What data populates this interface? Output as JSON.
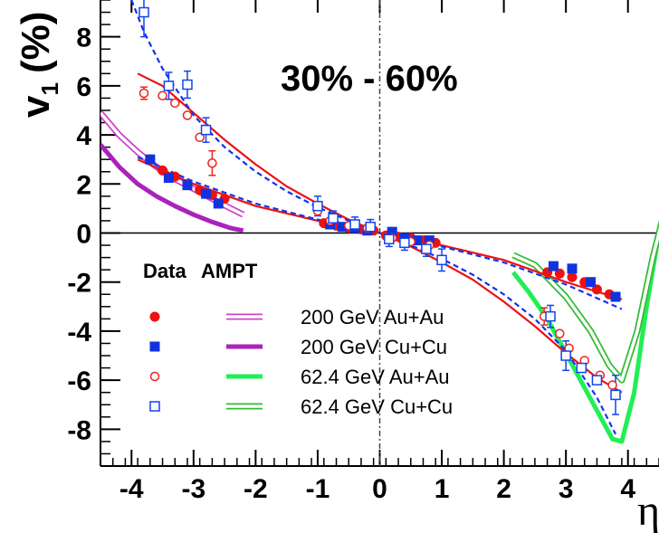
{
  "chart_data": {
    "type": "scatter",
    "annotation": "30% - 60%",
    "xlabel": "η",
    "ylabel": "v₁ (%)",
    "ylabel_main": "v",
    "ylabel_sub": "1",
    "ylabel_unit": "(%)",
    "xlim": [
      -4.5,
      4.5
    ],
    "ylim": [
      -9.5,
      9.5
    ],
    "xticks": [
      -4,
      -3,
      -2,
      -1,
      0,
      1,
      2,
      3,
      4
    ],
    "yticks": [
      -8,
      -6,
      -4,
      -2,
      0,
      2,
      4,
      6,
      8
    ],
    "grid": false,
    "legend": {
      "placement": "lower-left",
      "header_data": "Data",
      "header_model": "AMPT",
      "entries": [
        {
          "label": "200 GeV Au+Au",
          "marker": "filled-circle",
          "line": "double-thin",
          "color": "#cc44cc"
        },
        {
          "label": "200 GeV Cu+Cu",
          "marker": "filled-square",
          "line": "thick",
          "color": "#aa22bb"
        },
        {
          "label": "62.4 GeV Au+Au",
          "marker": "open-circle",
          "line": "thick",
          "color": "#22ee55"
        },
        {
          "label": "62.4 GeV Cu+Cu",
          "marker": "open-square",
          "line": "double-thin",
          "color": "#33bb33"
        }
      ]
    },
    "series": [
      {
        "name": "200 GeV Au+Au",
        "kind": "data",
        "marker": "filled-circle",
        "color": "#ee1111",
        "points": [
          [
            -3.7,
            3.0
          ],
          [
            -3.5,
            2.55
          ],
          [
            -3.3,
            2.3
          ],
          [
            -3.1,
            2.0
          ],
          [
            -2.9,
            1.75
          ],
          [
            -2.7,
            1.55
          ],
          [
            -2.5,
            1.4
          ],
          [
            -0.9,
            0.4
          ],
          [
            -0.7,
            0.3
          ],
          [
            -0.5,
            0.2
          ],
          [
            -0.3,
            0.15
          ],
          [
            -0.1,
            0.1
          ],
          [
            0.1,
            -0.1
          ],
          [
            0.3,
            -0.15
          ],
          [
            0.5,
            -0.2
          ],
          [
            0.7,
            -0.3
          ],
          [
            0.9,
            -0.4
          ],
          [
            2.7,
            -1.6
          ],
          [
            2.9,
            -1.65
          ],
          [
            3.1,
            -1.8
          ],
          [
            3.3,
            -2.0
          ],
          [
            3.5,
            -2.3
          ],
          [
            3.7,
            -2.5
          ]
        ]
      },
      {
        "name": "200 GeV Cu+Cu",
        "kind": "data",
        "marker": "filled-square",
        "color": "#1133dd",
        "points": [
          [
            -3.7,
            3.0
          ],
          [
            -3.4,
            2.25
          ],
          [
            -3.1,
            1.95
          ],
          [
            -2.8,
            1.6
          ],
          [
            -2.6,
            1.2
          ],
          [
            -0.8,
            0.35
          ],
          [
            -0.6,
            0.25
          ],
          [
            -0.4,
            0.2
          ],
          [
            -0.2,
            0.1
          ],
          [
            0.2,
            0.05
          ],
          [
            0.4,
            -0.2
          ],
          [
            0.6,
            -0.3
          ],
          [
            0.8,
            -0.3
          ],
          [
            2.8,
            -1.35
          ],
          [
            3.1,
            -1.45
          ],
          [
            3.4,
            -2.0
          ],
          [
            3.8,
            -2.6
          ]
        ]
      },
      {
        "name": "62.4 GeV Au+Au",
        "kind": "data",
        "marker": "open-circle",
        "color": "#ee2222",
        "points": [
          [
            -3.8,
            5.7
          ],
          [
            -3.5,
            5.6
          ],
          [
            -3.3,
            5.3
          ],
          [
            -3.1,
            4.8
          ],
          [
            -2.9,
            3.9
          ],
          [
            -2.7,
            2.85
          ],
          [
            -1.0,
            0.9
          ],
          [
            -0.8,
            0.5
          ],
          [
            -0.5,
            0.3
          ],
          [
            -0.2,
            0.2
          ],
          [
            0.2,
            -0.2
          ],
          [
            0.5,
            -0.35
          ],
          [
            0.8,
            -0.5
          ],
          [
            2.65,
            -3.4
          ],
          [
            2.9,
            -4.1
          ],
          [
            3.05,
            -4.7
          ],
          [
            3.3,
            -5.2
          ],
          [
            3.55,
            -5.8
          ],
          [
            3.75,
            -6.2
          ]
        ]
      },
      {
        "name": "62.4 GeV Cu+Cu",
        "kind": "data",
        "marker": "open-square",
        "color": "#1144ee",
        "points": [
          [
            -3.8,
            9.0
          ],
          [
            -3.4,
            6.0
          ],
          [
            -3.1,
            6.05
          ],
          [
            -2.8,
            4.2
          ],
          [
            -1.0,
            1.1
          ],
          [
            -0.75,
            0.6
          ],
          [
            -0.4,
            0.35
          ],
          [
            -0.15,
            0.25
          ],
          [
            0.15,
            -0.25
          ],
          [
            0.4,
            -0.4
          ],
          [
            0.75,
            -0.65
          ],
          [
            1.0,
            -1.1
          ],
          [
            2.75,
            -3.4
          ],
          [
            3.0,
            -5.0
          ],
          [
            3.25,
            -5.5
          ],
          [
            3.5,
            -6.0
          ],
          [
            3.8,
            -6.6
          ]
        ]
      },
      {
        "name": "",
        "kind": "fit",
        "style": "solid",
        "color": "#ee1111",
        "points": [
          [
            -3.9,
            3.0
          ],
          [
            -3.0,
            2.0
          ],
          [
            -2.0,
            1.1
          ],
          [
            -1.0,
            0.5
          ],
          [
            0.0,
            0.0
          ],
          [
            1.0,
            -0.5
          ],
          [
            2.0,
            -1.1
          ],
          [
            3.0,
            -2.0
          ],
          [
            3.9,
            -2.7
          ]
        ]
      },
      {
        "name": "",
        "kind": "fit",
        "style": "solid",
        "color": "#ee1111",
        "points": [
          [
            -3.9,
            6.5
          ],
          [
            -3.5,
            6.0
          ],
          [
            -3.0,
            4.9
          ],
          [
            -2.5,
            3.8
          ],
          [
            -2.0,
            2.8
          ],
          [
            -1.5,
            1.9
          ],
          [
            -1.0,
            1.2
          ],
          [
            -0.5,
            0.55
          ],
          [
            0.0,
            0.0
          ],
          [
            0.5,
            -0.55
          ],
          [
            1.0,
            -1.2
          ],
          [
            1.5,
            -1.9
          ],
          [
            2.0,
            -2.8
          ],
          [
            2.5,
            -3.8
          ],
          [
            3.0,
            -4.9
          ],
          [
            3.5,
            -5.9
          ],
          [
            3.9,
            -6.5
          ]
        ]
      },
      {
        "name": "",
        "kind": "fit",
        "style": "dashed",
        "color": "#1133ee",
        "points": [
          [
            -4.0,
            9.5
          ],
          [
            -3.8,
            8.2
          ],
          [
            -3.5,
            6.7
          ],
          [
            -3.0,
            4.8
          ],
          [
            -2.5,
            3.5
          ],
          [
            -2.0,
            2.5
          ],
          [
            -1.5,
            1.7
          ],
          [
            -1.0,
            1.05
          ],
          [
            -0.5,
            0.5
          ],
          [
            0.0,
            0.0
          ],
          [
            0.5,
            -0.5
          ],
          [
            1.0,
            -1.05
          ],
          [
            1.5,
            -1.7
          ],
          [
            2.0,
            -2.5
          ],
          [
            2.5,
            -3.5
          ],
          [
            3.0,
            -4.8
          ],
          [
            3.5,
            -6.7
          ],
          [
            3.8,
            -8.2
          ]
        ]
      },
      {
        "name": "",
        "kind": "fit",
        "style": "dashed",
        "color": "#1133ee",
        "points": [
          [
            -3.9,
            3.1
          ],
          [
            -3.0,
            2.1
          ],
          [
            -2.0,
            1.2
          ],
          [
            -1.0,
            0.55
          ],
          [
            0.0,
            0.0
          ],
          [
            1.0,
            -0.55
          ],
          [
            2.0,
            -1.2
          ],
          [
            3.0,
            -2.1
          ],
          [
            3.9,
            -3.1
          ]
        ]
      },
      {
        "name": "",
        "kind": "model",
        "style": "double-thin",
        "color": "#cc44cc",
        "points": [
          [
            -4.5,
            4.9
          ],
          [
            -4.2,
            4.0
          ],
          [
            -3.9,
            3.3
          ],
          [
            -3.6,
            2.7
          ],
          [
            -3.3,
            2.2
          ],
          [
            -3.0,
            1.8
          ],
          [
            -2.7,
            1.4
          ],
          [
            -2.4,
            1.0
          ],
          [
            -2.2,
            0.75
          ]
        ]
      },
      {
        "name": "",
        "kind": "model",
        "style": "thick",
        "color": "#aa22bb",
        "points": [
          [
            -4.5,
            3.6
          ],
          [
            -4.2,
            2.7
          ],
          [
            -3.9,
            2.0
          ],
          [
            -3.6,
            1.5
          ],
          [
            -3.3,
            1.1
          ],
          [
            -3.0,
            0.75
          ],
          [
            -2.7,
            0.45
          ],
          [
            -2.4,
            0.2
          ],
          [
            -2.2,
            0.1
          ]
        ]
      },
      {
        "name": "",
        "kind": "model",
        "style": "thick",
        "color": "#22ee55",
        "points": [
          [
            2.15,
            -1.6
          ],
          [
            2.4,
            -2.4
          ],
          [
            2.7,
            -3.5
          ],
          [
            3.0,
            -4.9
          ],
          [
            3.3,
            -6.3
          ],
          [
            3.6,
            -7.7
          ],
          [
            3.75,
            -8.4
          ],
          [
            3.9,
            -8.5
          ],
          [
            4.1,
            -6.5
          ],
          [
            4.3,
            -3.0
          ],
          [
            4.5,
            0.0
          ]
        ]
      },
      {
        "name": "",
        "kind": "model",
        "style": "double-thin",
        "color": "#33bb33",
        "points": [
          [
            2.15,
            -0.9
          ],
          [
            2.5,
            -1.3
          ],
          [
            3.0,
            -2.6
          ],
          [
            3.4,
            -4.0
          ],
          [
            3.7,
            -5.4
          ],
          [
            3.9,
            -6.0
          ],
          [
            4.15,
            -4.0
          ],
          [
            4.4,
            -1.0
          ],
          [
            4.55,
            0.5
          ]
        ]
      }
    ],
    "errorbars": [
      {
        "x": -3.8,
        "y": 9.0,
        "e": 1.0,
        "color": "#1144ee"
      },
      {
        "x": -3.4,
        "y": 6.0,
        "e": 0.55,
        "color": "#1144ee"
      },
      {
        "x": -3.1,
        "y": 6.05,
        "e": 0.55,
        "color": "#1144ee"
      },
      {
        "x": -2.8,
        "y": 4.2,
        "e": 0.5,
        "color": "#1144ee"
      },
      {
        "x": -2.7,
        "y": 2.85,
        "e": 0.5,
        "color": "#ee2222"
      },
      {
        "x": -3.8,
        "y": 5.7,
        "e": 0.25,
        "color": "#ee2222"
      },
      {
        "x": -1.0,
        "y": 1.1,
        "e": 0.4,
        "color": "#1144ee"
      },
      {
        "x": -0.75,
        "y": 0.6,
        "e": 0.3,
        "color": "#1144ee"
      },
      {
        "x": -0.4,
        "y": 0.35,
        "e": 0.3,
        "color": "#1144ee"
      },
      {
        "x": -0.15,
        "y": 0.25,
        "e": 0.3,
        "color": "#1144ee"
      },
      {
        "x": 0.15,
        "y": -0.25,
        "e": 0.3,
        "color": "#1144ee"
      },
      {
        "x": 0.4,
        "y": -0.4,
        "e": 0.3,
        "color": "#1144ee"
      },
      {
        "x": 0.75,
        "y": -0.65,
        "e": 0.3,
        "color": "#1144ee"
      },
      {
        "x": 1.0,
        "y": -1.1,
        "e": 0.45,
        "color": "#1144ee"
      },
      {
        "x": 2.75,
        "y": -3.4,
        "e": 0.45,
        "color": "#1144ee"
      },
      {
        "x": 3.0,
        "y": -5.0,
        "e": 0.6,
        "color": "#1144ee"
      },
      {
        "x": 3.8,
        "y": -6.6,
        "e": 0.8,
        "color": "#1144ee"
      },
      {
        "x": 2.65,
        "y": -3.4,
        "e": 0.35,
        "color": "#ee2222"
      }
    ]
  }
}
